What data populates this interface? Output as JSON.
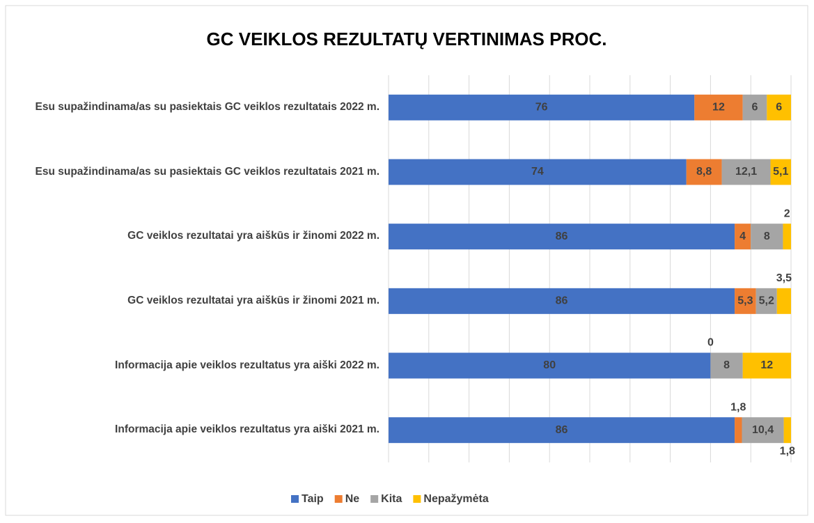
{
  "chart_data": {
    "type": "stacked-barh",
    "title": "GC VEIKLOS REZULTATŲ VERTINIMAS PROC.",
    "categories": [
      "Esu supažindinama/as su pasiektais GC veiklos rezultatais 2022 m.",
      "Esu supažindinama/as su pasiektais GC veiklos rezultatais 2021 m.",
      "GC veiklos rezultatai yra aiškūs ir žinomi 2022 m.",
      "GC veiklos rezultatai yra aiškūs ir žinomi 2021 m.",
      "Informacija apie veiklos rezultatus yra aiški 2022 m.",
      "Informacija apie veiklos rezultatus yra aiški 2021 m."
    ],
    "series": [
      {
        "name": "Taip",
        "color": "#4472c4",
        "values": [
          76,
          74,
          86,
          86,
          80,
          86
        ],
        "value_labels": [
          "76",
          "74",
          "86",
          "86",
          "80",
          "86"
        ]
      },
      {
        "name": "Ne",
        "color": "#ed7d31",
        "values": [
          12,
          8.8,
          4,
          5.3,
          0,
          1.8
        ],
        "value_labels": [
          "12",
          "8,8",
          "4",
          "5,3",
          "0",
          "1,8"
        ]
      },
      {
        "name": "Kita",
        "color": "#a5a5a5",
        "values": [
          6,
          12.1,
          8,
          5.2,
          8,
          10.4
        ],
        "value_labels": [
          "6",
          "12,1",
          "8",
          "5,2",
          "8",
          "10,4"
        ]
      },
      {
        "name": "Nepažymėta",
        "color": "#ffc000",
        "values": [
          6,
          5.1,
          2,
          3.5,
          12,
          1.8
        ],
        "value_labels": [
          "6",
          "5,1",
          "2",
          "3,5",
          "12",
          "1,8"
        ]
      }
    ],
    "xlim": [
      0,
      100
    ],
    "xticks": [
      0,
      10,
      20,
      30,
      40,
      50,
      60,
      70,
      80,
      90,
      100
    ],
    "grid": true,
    "legend": "bottom"
  }
}
